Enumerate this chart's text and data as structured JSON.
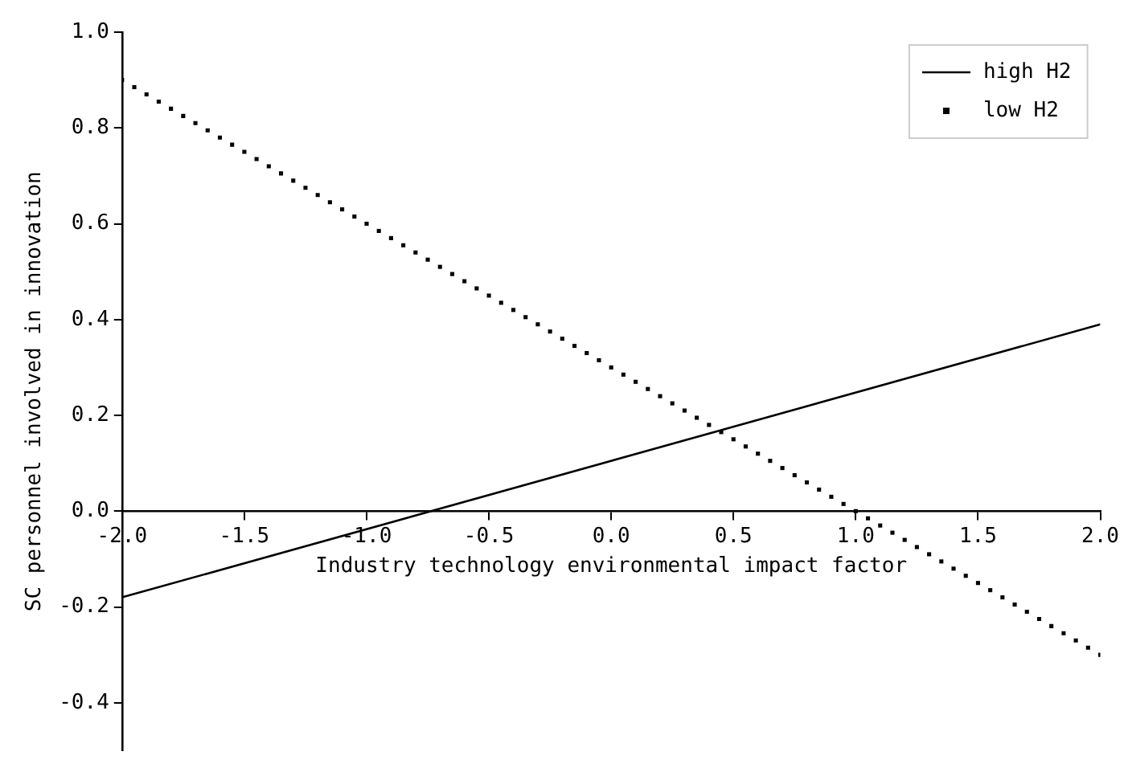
{
  "chart_data": {
    "type": "line",
    "xlabel": "Industry technology environmental impact factor",
    "ylabel": "SC personnel involved in innovation",
    "xlim": [
      -2.0,
      2.0
    ],
    "xticks": [
      {
        "value": -2,
        "label": "-2.0"
      },
      {
        "value": -1.5,
        "label": "-1.5"
      },
      {
        "value": -1,
        "label": "-1.0"
      },
      {
        "value": -0.5,
        "label": "-0.5"
      },
      {
        "value": 0,
        "label": "0.0"
      },
      {
        "value": 0.5,
        "label": "0.5"
      },
      {
        "value": 1,
        "label": "1.0"
      },
      {
        "value": 1.5,
        "label": "1.5"
      },
      {
        "value": 2,
        "label": "2.0"
      }
    ],
    "ylim": [
      -0.5,
      1.0
    ],
    "yticks": [
      {
        "value": -0.4,
        "label": "-0.4"
      },
      {
        "value": -0.2,
        "label": "-0.2"
      },
      {
        "value": 0,
        "label": "0.0"
      },
      {
        "value": 0.2,
        "label": "0.2"
      },
      {
        "value": 0.4,
        "label": "0.4"
      },
      {
        "value": 0.6,
        "label": "0.6"
      },
      {
        "value": 0.8,
        "label": "0.8"
      },
      {
        "value": 1,
        "label": "1.0"
      }
    ],
    "grid": false,
    "legend": "top right",
    "series": [
      {
        "name": "high H2",
        "color": "#000000",
        "marker": "none",
        "line_style": "solid",
        "x": [
          -2.0,
          2.0
        ],
        "values": [
          -0.18,
          0.39
        ]
      },
      {
        "name": "low H2",
        "type": "scatter",
        "color": "#000000",
        "marker": "square",
        "x": [
          -2.0,
          -1.95,
          -1.9,
          -1.85,
          -1.8,
          -1.75,
          -1.7,
          -1.65,
          -1.6,
          -1.55,
          -1.5,
          -1.45,
          -1.4,
          -1.35,
          -1.3,
          -1.25,
          -1.2,
          -1.15,
          -1.1,
          -1.05,
          -1.0,
          -0.95,
          -0.9,
          -0.85,
          -0.8,
          -0.75,
          -0.7,
          -0.65,
          -0.6,
          -0.55,
          -0.5,
          -0.45,
          -0.4,
          -0.35,
          -0.3,
          -0.25,
          -0.2,
          -0.15,
          -0.1,
          -0.05,
          0.0,
          0.05,
          0.1,
          0.15,
          0.2,
          0.25,
          0.3,
          0.35,
          0.4,
          0.45,
          0.5,
          0.55,
          0.6,
          0.65,
          0.7,
          0.75,
          0.8,
          0.85,
          0.9,
          0.95,
          1.0,
          1.05,
          1.1,
          1.15,
          1.2,
          1.25,
          1.3,
          1.35,
          1.4,
          1.45,
          1.5,
          1.55,
          1.6,
          1.65,
          1.7,
          1.75,
          1.8,
          1.85,
          1.9,
          1.95,
          2.0
        ],
        "values": [
          0.9,
          0.885,
          0.87,
          0.855,
          0.84,
          0.825,
          0.81,
          0.795,
          0.78,
          0.765,
          0.75,
          0.735,
          0.72,
          0.705,
          0.69,
          0.675,
          0.66,
          0.645,
          0.63,
          0.615,
          0.6,
          0.585,
          0.57,
          0.555,
          0.54,
          0.525,
          0.51,
          0.495,
          0.48,
          0.465,
          0.45,
          0.435,
          0.42,
          0.405,
          0.39,
          0.375,
          0.36,
          0.345,
          0.33,
          0.315,
          0.3,
          0.285,
          0.27,
          0.255,
          0.24,
          0.225,
          0.21,
          0.195,
          0.18,
          0.165,
          0.15,
          0.135,
          0.12,
          0.105,
          0.09,
          0.075,
          0.06,
          0.045,
          0.03,
          0.015,
          0.0,
          -0.015,
          -0.03,
          -0.045,
          -0.06,
          -0.075,
          -0.09,
          -0.105,
          -0.12,
          -0.135,
          -0.15,
          -0.165,
          -0.18,
          -0.195,
          -0.21,
          -0.225,
          -0.24,
          -0.255,
          -0.27,
          -0.285,
          -0.3
        ]
      }
    ]
  }
}
